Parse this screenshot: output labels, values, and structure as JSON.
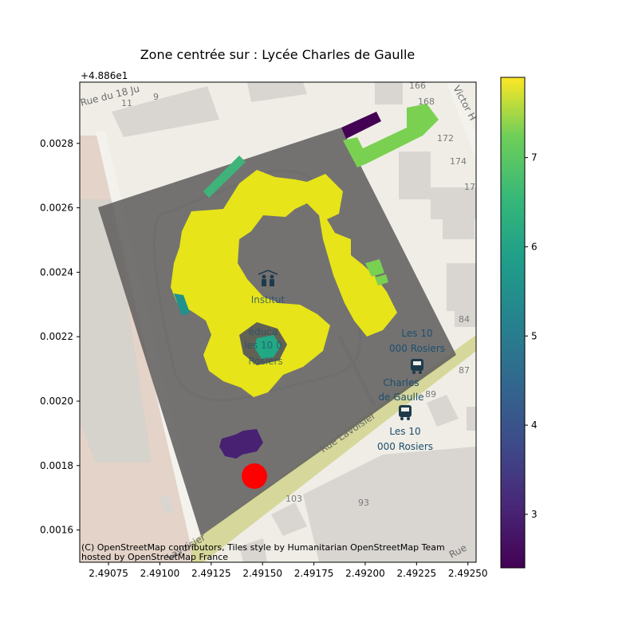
{
  "chart_data": {
    "type": "map",
    "title": "Zone centrée sur : Lycée Charles de Gaulle",
    "x_ticks": [
      "2.49075",
      "2.49100",
      "2.49125",
      "2.49150",
      "2.49175",
      "2.49200",
      "2.49225",
      "2.49250"
    ],
    "y_ticks": [
      "0.0016",
      "0.0018",
      "0.0020",
      "0.0022",
      "0.0024",
      "0.0026",
      "0.0028"
    ],
    "y_offset_label": "+4.886e1",
    "xlim": [
      2.49061,
      2.49254
    ],
    "ylim": [
      0.0015,
      0.00299
    ],
    "colorbar": {
      "colormap": "viridis",
      "range": [
        2.4,
        7.9
      ],
      "ticks": [
        "3",
        "4",
        "5",
        "6",
        "7"
      ],
      "tick_values": [
        3,
        4,
        5,
        6,
        7
      ]
    },
    "marker": {
      "color": "#ff0000"
    },
    "attribution": [
      "(C) OpenStreetMap contributors, Tiles style by Humanitarian OpenStreetMap Team",
      "hosted by OpenStreetMap France"
    ],
    "map_labels": {
      "street_top": "Rue du 18 Ju",
      "street_right": "Victor H",
      "street_lavoisier": "Rue Lavoisier",
      "street_bottom_left": "Lavoisier",
      "street_bottom_right": "Rue",
      "institut_1": "Institut",
      "institut_2": "éduca",
      "institut_3": "les 10 0",
      "institut_4": "Rosiers",
      "bus_1_line1": "Les 10",
      "bus_1_line2": "000 Rosiers",
      "bus_2_line1": "Charles",
      "bus_2_line2": "de Gaulle",
      "bus_3_line1": "Les 10",
      "bus_3_line2": "000 Rosiers",
      "numbers": [
        "11",
        "9",
        "166",
        "168",
        "172",
        "174",
        "17",
        "84",
        "87",
        "89",
        "103",
        "93"
      ]
    },
    "colors": {
      "yellow": "#e7e419",
      "green_light": "#7ad151",
      "green_mid": "#5ec962",
      "teal": "#22a884",
      "teal_dark": "#21918c",
      "purple": "#440154",
      "purple_mid": "#482173",
      "overlay": "#5a5a5a"
    }
  }
}
